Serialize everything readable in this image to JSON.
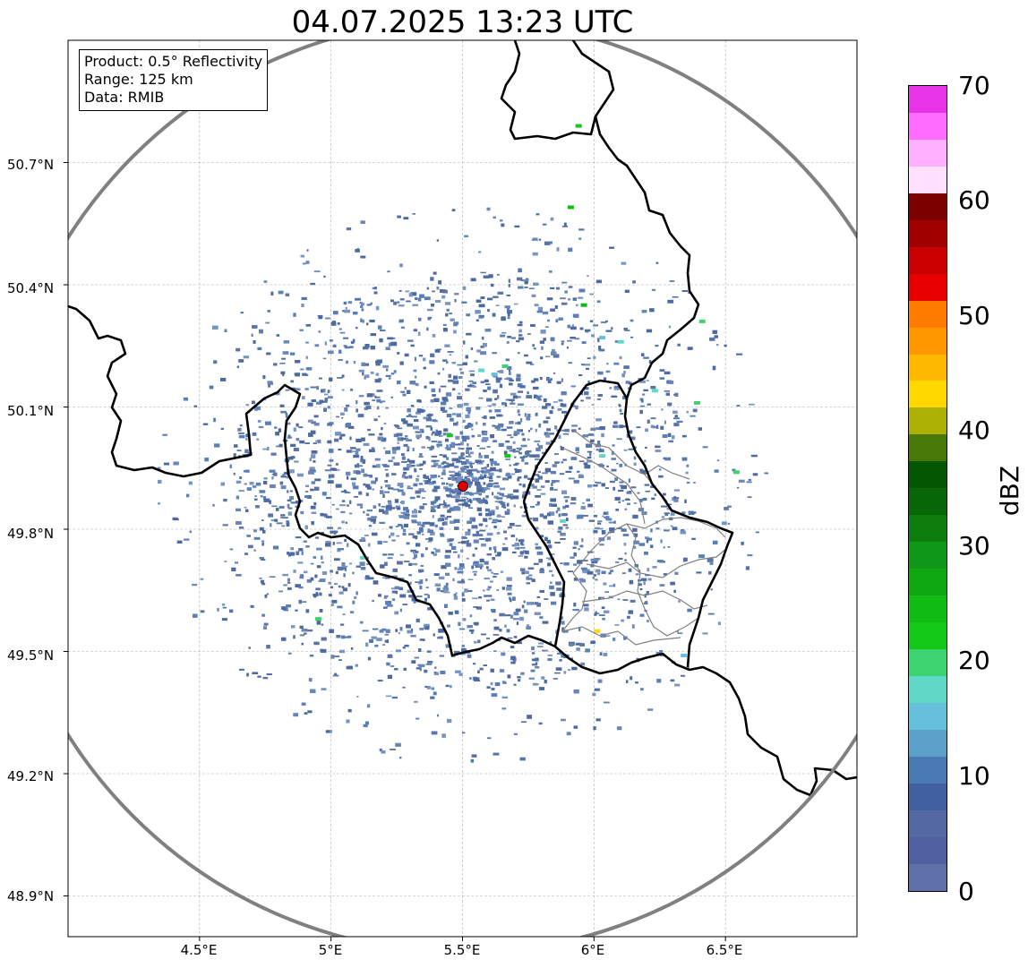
{
  "title": "04.07.2025 13:23 UTC",
  "info": {
    "product": "Product: 0.5° Reflectivity",
    "range": "Range: 125 km",
    "data": "Data: RMIB"
  },
  "latitudes": [
    {
      "label": "50.7°N",
      "value": 50.7
    },
    {
      "label": "50.4°N",
      "value": 50.4
    },
    {
      "label": "50.1°N",
      "value": 50.1
    },
    {
      "label": "49.8°N",
      "value": 49.8
    },
    {
      "label": "49.5°N",
      "value": 49.5
    },
    {
      "label": "49.2°N",
      "value": 49.2
    },
    {
      "label": "48.9°N",
      "value": 48.9
    }
  ],
  "longitudes": [
    {
      "label": "4.5°E",
      "value": 4.5
    },
    {
      "label": "5°E",
      "value": 5.0
    },
    {
      "label": "5.5°E",
      "value": 5.5
    },
    {
      "label": "6°E",
      "value": 6.0
    },
    {
      "label": "6.5°E",
      "value": 6.5
    }
  ],
  "extent": {
    "lon_min": 4.0,
    "lon_max": 7.0,
    "lat_min": 48.8,
    "lat_max": 51.0
  },
  "radar_site": {
    "lon": 5.505,
    "lat": 49.915,
    "color": "#e00000"
  },
  "range_ring_color": "#808080",
  "colorbar": {
    "label": "dBZ",
    "min": 0,
    "max": 70,
    "ticks": [
      "0",
      "10",
      "20",
      "30",
      "40",
      "50",
      "60",
      "70"
    ],
    "colors": [
      "#6070a8",
      "#5060a0",
      "#5468a4",
      "#4060a0",
      "#4a7ab4",
      "#5aa0c8",
      "#66c0dc",
      "#60d8c8",
      "#3cd470",
      "#14c818",
      "#10bc14",
      "#10a810",
      "#109818",
      "#0c7c0c",
      "#086808",
      "#045804",
      "#487808",
      "#acb004",
      "#ffd800",
      "#ffb800",
      "#ff9800",
      "#ff7c00",
      "#e80000",
      "#c80000",
      "#a00000",
      "#7c0000",
      "#ffe0ff",
      "#ffb0ff",
      "#ff6cff",
      "#e834e8"
    ]
  },
  "echoes": [
    {
      "lon": 5.57,
      "lat": 50.19,
      "dbz": 18
    },
    {
      "lon": 5.62,
      "lat": 50.18,
      "dbz": 14
    },
    {
      "lon": 5.66,
      "lat": 50.2,
      "dbz": 20
    },
    {
      "lon": 5.45,
      "lat": 50.03,
      "dbz": 21
    },
    {
      "lon": 5.67,
      "lat": 49.98,
      "dbz": 22
    },
    {
      "lon": 6.03,
      "lat": 49.98,
      "dbz": 17
    },
    {
      "lon": 5.96,
      "lat": 50.35,
      "dbz": 24
    },
    {
      "lon": 6.1,
      "lat": 50.26,
      "dbz": 18
    },
    {
      "lon": 6.41,
      "lat": 50.31,
      "dbz": 20
    },
    {
      "lon": 6.39,
      "lat": 50.11,
      "dbz": 19
    },
    {
      "lon": 5.88,
      "lat": 49.82,
      "dbz": 17
    },
    {
      "lon": 6.01,
      "lat": 49.55,
      "dbz": 42
    },
    {
      "lon": 5.91,
      "lat": 50.59,
      "dbz": 24
    },
    {
      "lon": 5.94,
      "lat": 50.79,
      "dbz": 22
    },
    {
      "lon": 6.03,
      "lat": 50.27,
      "dbz": 16
    },
    {
      "lon": 5.12,
      "lat": 49.73,
      "dbz": 18
    },
    {
      "lon": 4.95,
      "lat": 49.58,
      "dbz": 19
    },
    {
      "lon": 6.34,
      "lat": 49.49,
      "dbz": 15
    },
    {
      "lon": 6.54,
      "lat": 49.94,
      "dbz": 20
    },
    {
      "lon": 6.23,
      "lat": 50.14,
      "dbz": 17
    }
  ]
}
